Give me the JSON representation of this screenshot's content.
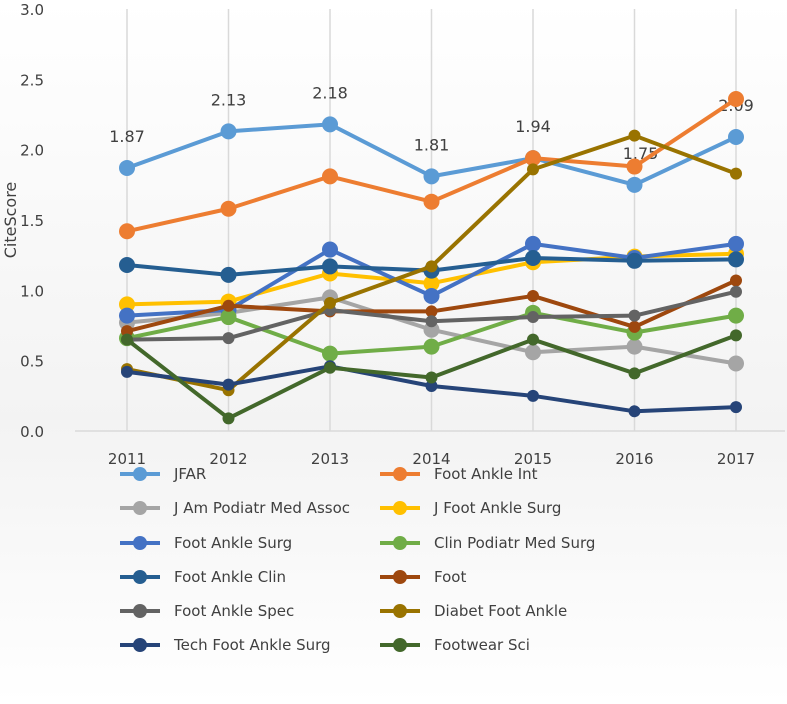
{
  "chart_data": {
    "type": "line",
    "title": "",
    "xlabel": "",
    "ylabel": "CiteScore",
    "ylim": [
      0,
      3.0
    ],
    "yticks": [
      "0.0",
      "0.5",
      "1.0",
      "1.5",
      "2.0",
      "2.5",
      "3.0"
    ],
    "categories": [
      "2011",
      "2012",
      "2013",
      "2014",
      "2015",
      "2016",
      "2017"
    ],
    "legend_position": "bottom",
    "grid": "vertical",
    "series": [
      {
        "name": "JFAR",
        "color": "#5B9BD5",
        "values": [
          1.87,
          2.13,
          2.18,
          1.81,
          1.94,
          1.75,
          2.09
        ],
        "labels": [
          "1.87",
          "2.13",
          "2.18",
          "1.81",
          "1.94",
          "1.75",
          "2.09"
        ]
      },
      {
        "name": "Foot Ankle Int",
        "color": "#ED7D31",
        "values": [
          1.42,
          1.58,
          1.81,
          1.63,
          1.94,
          1.88,
          2.36
        ]
      },
      {
        "name": "J Am Podiatr Med Assoc",
        "color": "#A5A5A5",
        "values": [
          0.77,
          0.84,
          0.95,
          0.72,
          0.56,
          0.6,
          0.48
        ]
      },
      {
        "name": "J Foot Ankle Surg",
        "color": "#FFC000",
        "values": [
          0.9,
          0.92,
          1.12,
          1.05,
          1.2,
          1.24,
          1.26
        ]
      },
      {
        "name": "Foot Ankle Surg",
        "color": "#4472C4",
        "values": [
          0.82,
          0.86,
          1.29,
          0.96,
          1.33,
          1.23,
          1.33
        ]
      },
      {
        "name": "Clin Podiatr Med Surg",
        "color": "#70AD47",
        "values": [
          0.66,
          0.81,
          0.55,
          0.6,
          0.84,
          0.7,
          0.82
        ]
      },
      {
        "name": "Foot Ankle Clin",
        "color": "#255E91",
        "values": [
          1.18,
          1.11,
          1.17,
          1.14,
          1.23,
          1.21,
          1.22
        ]
      },
      {
        "name": "Foot",
        "color": "#9E480E",
        "values": [
          0.71,
          0.89,
          0.85,
          0.85,
          0.96,
          0.74,
          1.07
        ]
      },
      {
        "name": "Foot Ankle Spec",
        "color": "#636363",
        "values": [
          0.65,
          0.66,
          0.86,
          0.78,
          0.81,
          0.82,
          0.99
        ]
      },
      {
        "name": "Diabet Foot Ankle",
        "color": "#997300",
        "values": [
          0.44,
          0.29,
          0.91,
          1.17,
          1.86,
          2.1,
          1.83
        ]
      },
      {
        "name": "Tech Foot Ankle Surg",
        "color": "#264478",
        "values": [
          0.42,
          0.33,
          0.46,
          0.32,
          0.25,
          0.14,
          0.17
        ]
      },
      {
        "name": "Footwear Sci",
        "color": "#43682B",
        "values": [
          0.65,
          0.09,
          0.45,
          0.38,
          0.65,
          0.41,
          0.68
        ]
      }
    ]
  }
}
